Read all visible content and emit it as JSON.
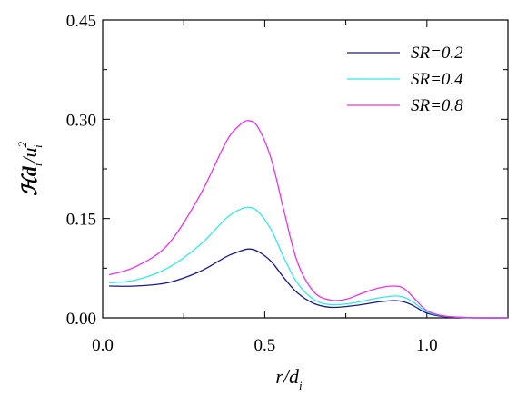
{
  "chart_data": {
    "type": "line",
    "xlabel": {
      "main": "r/d",
      "sub": "i"
    },
    "ylabel": {
      "main": "ℋd",
      "sub1": "i",
      "mid": "/u",
      "sup": "2",
      "sub2": "i"
    },
    "xlim": [
      0.0,
      1.25
    ],
    "ylim": [
      0.0,
      0.45
    ],
    "xticks": [
      0.0,
      0.5,
      1.0
    ],
    "xtick_labels": [
      "0.0",
      "0.5",
      "1.0"
    ],
    "yticks": [
      0.0,
      0.15,
      0.3,
      0.45
    ],
    "ytick_labels": [
      "0.00",
      "0.15",
      "0.30",
      "0.45"
    ],
    "legend_position": "top-right",
    "grid": false,
    "series": [
      {
        "name": "SR=0.2",
        "color": "#1a1a8c",
        "x": [
          0.02,
          0.1,
          0.2,
          0.3,
          0.38,
          0.42,
          0.45,
          0.48,
          0.52,
          0.56,
          0.6,
          0.65,
          0.7,
          0.75,
          0.8,
          0.85,
          0.9,
          0.93,
          0.96,
          1.0,
          1.05,
          1.1,
          1.15,
          1.25
        ],
        "y": [
          0.048,
          0.048,
          0.053,
          0.07,
          0.092,
          0.1,
          0.104,
          0.1,
          0.085,
          0.06,
          0.038,
          0.022,
          0.016,
          0.017,
          0.02,
          0.024,
          0.026,
          0.024,
          0.018,
          0.007,
          0.002,
          0.001,
          0.0,
          0.0
        ]
      },
      {
        "name": "SR=0.4",
        "color": "#33e8e8",
        "x": [
          0.02,
          0.1,
          0.2,
          0.3,
          0.38,
          0.42,
          0.45,
          0.48,
          0.52,
          0.56,
          0.6,
          0.65,
          0.7,
          0.75,
          0.8,
          0.85,
          0.9,
          0.93,
          0.96,
          1.0,
          1.05,
          1.1,
          1.15,
          1.25
        ],
        "y": [
          0.053,
          0.057,
          0.075,
          0.11,
          0.15,
          0.163,
          0.167,
          0.16,
          0.133,
          0.09,
          0.053,
          0.028,
          0.02,
          0.021,
          0.025,
          0.03,
          0.033,
          0.031,
          0.023,
          0.009,
          0.003,
          0.001,
          0.0,
          0.0
        ]
      },
      {
        "name": "SR=0.8",
        "color": "#e833e8",
        "x": [
          0.02,
          0.1,
          0.2,
          0.3,
          0.38,
          0.42,
          0.45,
          0.48,
          0.52,
          0.56,
          0.6,
          0.65,
          0.7,
          0.75,
          0.8,
          0.85,
          0.9,
          0.93,
          0.96,
          1.0,
          1.05,
          1.1,
          1.15,
          1.25
        ],
        "y": [
          0.065,
          0.077,
          0.11,
          0.185,
          0.265,
          0.29,
          0.298,
          0.287,
          0.24,
          0.16,
          0.085,
          0.04,
          0.027,
          0.028,
          0.037,
          0.045,
          0.048,
          0.044,
          0.03,
          0.011,
          0.003,
          0.001,
          0.0,
          0.0
        ]
      }
    ]
  }
}
